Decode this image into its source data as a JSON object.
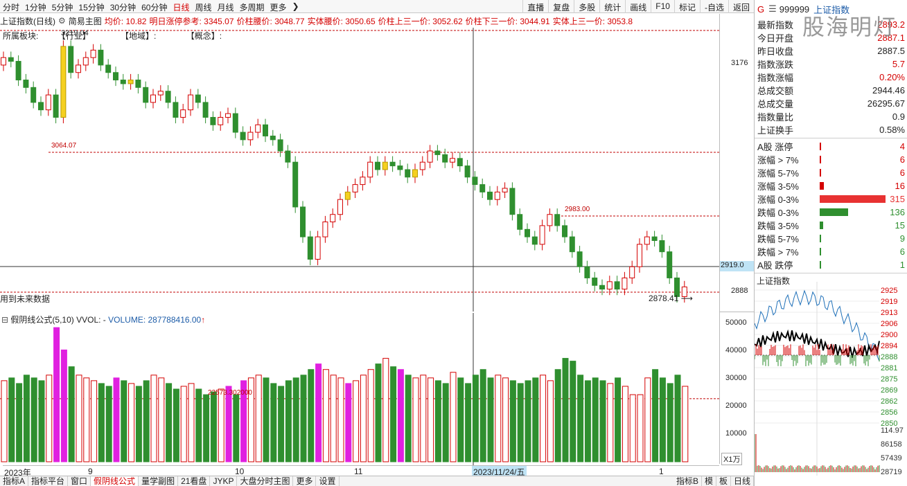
{
  "toolbar": {
    "periods": [
      "分时",
      "1分钟",
      "5分钟",
      "15分钟",
      "30分钟",
      "60分钟",
      "日线",
      "周线",
      "月线",
      "多周期",
      "更多"
    ],
    "active_period": "日线",
    "buttons": [
      "直播",
      "复盘",
      "多股",
      "统计",
      "画线",
      "F10",
      "标记",
      "-自选",
      "返回"
    ]
  },
  "infobar": {
    "title": "上证指数(日线)",
    "main_chart": "简易主图",
    "avg_price": "均价: 10.82",
    "limit_ref": "明日涨停参考: 3345.07",
    "body_waist": "价柱腰价: 3048.77",
    "solid_waist": "实体腰价: 3050.65",
    "upper_third": "价柱上三一价: 3052.62",
    "lower_third": "价柱下三一价: 3044.91",
    "solid_upper": "实体上三一价: 3053.8"
  },
  "chart_overlay": {
    "sector": "所属板块:",
    "industry": "【行业】",
    "region": "【地域】:",
    "concept": "【概念】:",
    "high_label": "3219.04",
    "level_3064": "3064.07",
    "level_2983": "2983.00",
    "low_label": "2878.41",
    "future_note": "用到未来数据",
    "right_level": "2919.0"
  },
  "price_axis": [
    "3176",
    "2888"
  ],
  "vol_info": {
    "title": "假阴线公式(5,10)",
    "vvol": "VVOL: -",
    "volume": "VOLUME: 287788416.00",
    "level_label": "22573.302000"
  },
  "vol_axis": [
    "50000",
    "40000",
    "30000",
    "20000",
    "10000"
  ],
  "vol_unit": "X1万",
  "date_axis": {
    "labels": [
      "2023年",
      "9",
      "10",
      "11",
      "1"
    ],
    "cursor_date": "2023/11/24/五"
  },
  "bottom_tabs": [
    "指标A",
    "指标平台",
    "窗口",
    "假阴线公式",
    "量学副图",
    "21看盘",
    "JYKP",
    "大盘分时主图",
    "更多",
    "设置"
  ],
  "bottom_right_tabs": [
    "指标B",
    "模",
    "板",
    "日线"
  ],
  "active_bottom_tab": "假阴线公式",
  "right_panel": {
    "code": "999999",
    "name": "上证指数",
    "rows": [
      {
        "label": "最新指数",
        "value": "2893.2"
      },
      {
        "label": "今日开盘",
        "value": "2887.1"
      },
      {
        "label": "昨日收盘",
        "value": "2887.5"
      },
      {
        "label": "指数涨跌",
        "value": "5.7"
      },
      {
        "label": "指数涨幅",
        "value": "0.20%"
      },
      {
        "label": "总成交额",
        "value": "2944.46"
      },
      {
        "label": "总成交量",
        "value": "26295.67"
      },
      {
        "label": "指数量比",
        "value": "0.9"
      },
      {
        "label": "上证换手",
        "value": "0.58%"
      }
    ],
    "breadth": [
      {
        "label": "A股 涨停",
        "value": "4",
        "bar": 0.01,
        "color": "#d40000"
      },
      {
        "label": "涨幅 > 7%",
        "value": "6",
        "bar": 0.01,
        "color": "#d40000"
      },
      {
        "label": "涨幅 5-7%",
        "value": "6",
        "bar": 0.01,
        "color": "#d40000"
      },
      {
        "label": "涨幅 3-5%",
        "value": "16",
        "bar": 0.06,
        "color": "#d40000"
      },
      {
        "label": "涨幅 0-3%",
        "value": "315",
        "bar": 1.0,
        "color": "#e83232"
      },
      {
        "label": "跌幅 0-3%",
        "value": "136",
        "bar": 0.43,
        "color": "#2f8f2f"
      },
      {
        "label": "跌幅 3-5%",
        "value": "15",
        "bar": 0.05,
        "color": "#2f8f2f"
      },
      {
        "label": "跌幅 5-7%",
        "value": "9",
        "bar": 0.02,
        "color": "#2f8f2f"
      },
      {
        "label": "跌幅 > 7%",
        "value": "6",
        "bar": 0.01,
        "color": "#2f8f2f"
      },
      {
        "label": "A股 跌停",
        "value": "1",
        "bar": 0.005,
        "color": "#2f8f2f"
      }
    ],
    "mini_title": "上证指数",
    "mini_axis": [
      "2925",
      "2919",
      "2913",
      "2906",
      "2900",
      "2894",
      "2888",
      "2881",
      "2875",
      "2869",
      "2862",
      "2856",
      "2850"
    ],
    "mini_vol_axis": [
      "114.97",
      "86158",
      "57439",
      "28719"
    ]
  },
  "watermark": "股海明灯",
  "colors": {
    "up": "#d40000",
    "down": "#2f8f2f",
    "yellow": "#f5d020",
    "magenta": "#e020e0",
    "grid": "#c00000"
  }
}
